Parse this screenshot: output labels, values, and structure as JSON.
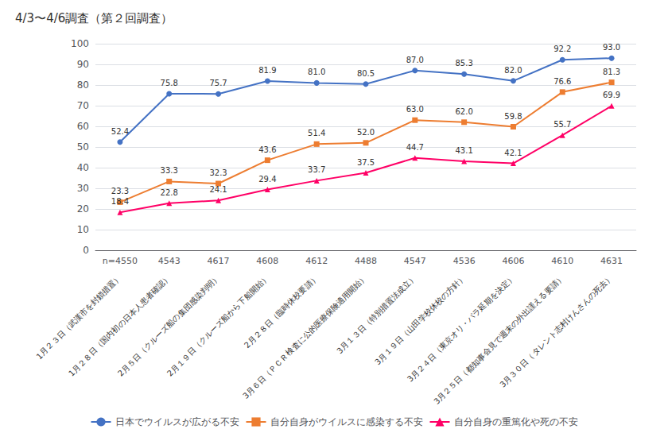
{
  "chart_data": {
    "type": "line",
    "title": "4/3〜4/6調査（第２回調査）",
    "categories": [
      "n=4550",
      "4543",
      "4617",
      "4608",
      "4612",
      "4488",
      "4547",
      "4536",
      "4606",
      "4610",
      "4631"
    ],
    "annotations": [
      "1月２３日（武漢市を封鎖措置）",
      "1月２８日（国内初の日本人患者確認）",
      "2月５日（クルーズ船の集団感染判明）",
      "2月１９日（クルーズ船から下船開始）",
      "2月２８日（臨時休校要請）",
      "3月６日（ＰＣＲ検査に公的医療保険適用開始）",
      "3月１３日（特別措置法成立）",
      "3月１９日（山田学校休校の方針）",
      "3月２４日（東京オリ・パラ延期を決定）",
      "3月２５日（都知事会見で週末の外出謹える要請）",
      "3月３０日（タレント志村けんさんの死去）"
    ],
    "series": [
      {
        "name": "日本でウイルスが広がる不安",
        "color": "#4472C4",
        "marker": "circle",
        "values": [
          52.4,
          75.8,
          75.7,
          81.9,
          81.0,
          80.5,
          87.0,
          85.3,
          82.0,
          92.2,
          93.0
        ],
        "value_labels": [
          "52.4",
          "75.8",
          "75.7",
          "81.9",
          "81.0",
          "80.5",
          "87.0",
          "85.3",
          "82.0",
          "92.2",
          "93.0"
        ]
      },
      {
        "name": "自分自身がウイルスに感染する不安",
        "color": "#ED7D31",
        "marker": "square",
        "values": [
          23.3,
          33.3,
          32.3,
          43.6,
          51.4,
          52.0,
          63.0,
          62.0,
          59.8,
          76.6,
          81.3
        ],
        "value_labels": [
          "23.3",
          "33.3",
          "32.3",
          "43.6",
          "51.4",
          "52.0",
          "63.0",
          "62.0",
          "59.8",
          "76.6",
          "81.3"
        ]
      },
      {
        "name": "自分自身の重篤化や死の不安",
        "color": "#FF0066",
        "marker": "triangle",
        "values": [
          18.4,
          22.8,
          24.1,
          29.4,
          33.7,
          37.5,
          44.7,
          43.1,
          42.1,
          55.7,
          69.9
        ],
        "value_labels": [
          "18.4",
          "22.8",
          "24.1",
          "29.4",
          "33.7",
          "37.5",
          "44.7",
          "43.1",
          "42.1",
          "55.7",
          "69.9"
        ]
      }
    ],
    "ylim": [
      0,
      100
    ],
    "yticks": [
      0,
      10,
      20,
      30,
      40,
      50,
      60,
      70,
      80,
      90,
      100
    ],
    "grid": true,
    "legend": "bottom",
    "data_labels": true
  }
}
